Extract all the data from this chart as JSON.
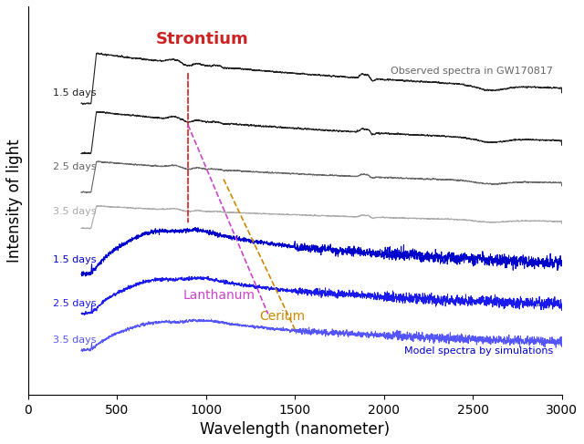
{
  "xlabel": "Wavelength (nanometer)",
  "ylabel": "Intensity of light",
  "xlim": [
    0,
    3000
  ],
  "obs_label": "Observed spectra in GW170817",
  "model_label": "Model spectra by simulations",
  "strontium_label": "Strontium",
  "lanthanum_label": "Lanthanum",
  "cerium_label": "Cerium",
  "obs_days": [
    "1.5 days",
    "2.5 days",
    "3.5 days"
  ],
  "model_days": [
    "1.5 days",
    "2.5 days",
    "3.5 days"
  ],
  "obs_colors": [
    "#222222",
    "#666666",
    "#aaaaaa"
  ],
  "model_colors": [
    "#0000cc",
    "#1a1aee",
    "#5555ff"
  ],
  "background_color": "#ffffff",
  "strontium_color": "#cc2222",
  "lanthanum_color": "#cc44cc",
  "cerium_color": "#cc8800",
  "seed": 42
}
